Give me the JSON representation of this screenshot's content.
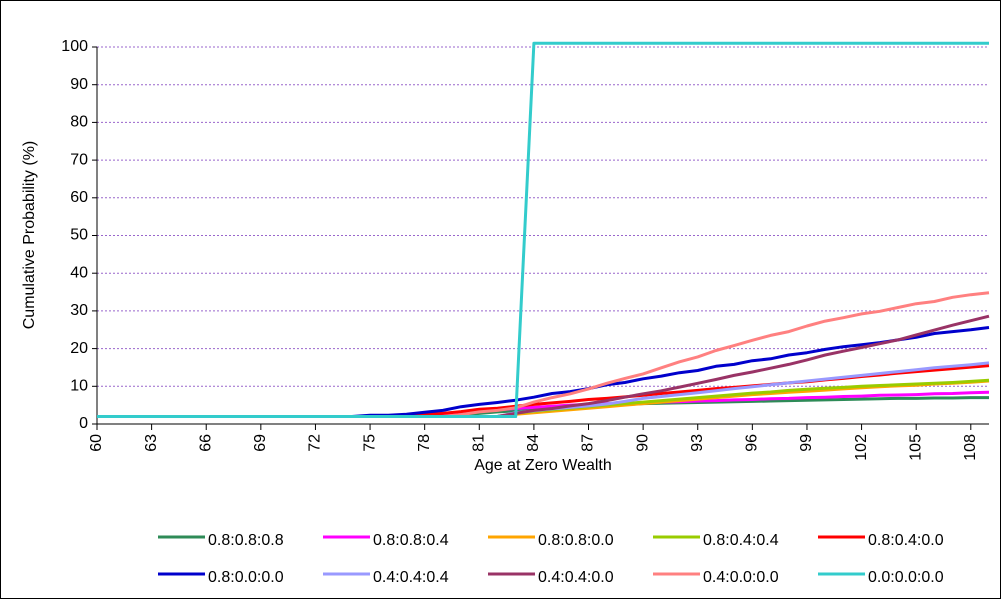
{
  "chart_data": {
    "type": "line",
    "x_label": "Age at Zero Wealth",
    "y_label": "Cumulative Probability (%)",
    "x": [
      60,
      61,
      62,
      63,
      64,
      65,
      66,
      67,
      68,
      69,
      70,
      71,
      72,
      73,
      74,
      75,
      76,
      77,
      78,
      79,
      80,
      81,
      82,
      83,
      84,
      85,
      86,
      87,
      88,
      89,
      90,
      91,
      92,
      93,
      94,
      95,
      96,
      97,
      98,
      99,
      100,
      101,
      102,
      103,
      104,
      105,
      106,
      107,
      108,
      109
    ],
    "xlim": [
      60,
      109
    ],
    "xticks": [
      60,
      63,
      66,
      69,
      72,
      75,
      78,
      81,
      84,
      87,
      90,
      93,
      96,
      99,
      102,
      105,
      108
    ],
    "ylim": [
      0,
      100
    ],
    "yticks": [
      0,
      10,
      20,
      30,
      40,
      50,
      60,
      70,
      80,
      90,
      100
    ],
    "grid": true,
    "series": [
      {
        "name": "0.8:0.8:0.8",
        "color": "#2e8b57",
        "values": [
          2,
          2,
          2,
          2,
          2,
          2,
          2,
          2,
          2,
          2,
          2,
          2,
          2,
          2,
          2,
          2,
          2,
          2,
          2,
          2,
          2.4,
          2.8,
          3.2,
          3.5,
          3.8,
          4.1,
          4.4,
          4.7,
          5.0,
          5.2,
          5.4,
          5.5,
          5.6,
          5.7,
          5.8,
          5.9,
          6.0,
          6.1,
          6.2,
          6.3,
          6.4,
          6.5,
          6.6,
          6.7,
          6.8,
          6.8,
          6.9,
          6.9,
          7.0,
          7.0
        ]
      },
      {
        "name": "0.8:0.8:0.4",
        "color": "#ff00ff",
        "values": [
          2,
          2,
          2,
          2,
          2,
          2,
          2,
          2,
          2,
          2,
          2,
          2,
          2,
          2,
          2,
          2,
          2,
          2,
          2.2,
          2.6,
          3.0,
          3.4,
          3.8,
          4.1,
          4.4,
          4.7,
          5.0,
          5.2,
          5.4,
          5.5,
          5.6,
          5.8,
          5.9,
          6.1,
          6.2,
          6.4,
          6.5,
          6.7,
          6.8,
          7.0,
          7.1,
          7.3,
          7.4,
          7.6,
          7.7,
          7.8,
          8.0,
          8.1,
          8.3,
          8.4
        ]
      },
      {
        "name": "0.8:0.8:0.0",
        "color": "#ffa500",
        "values": [
          2,
          2,
          2,
          2,
          2,
          2,
          2,
          2,
          2,
          2,
          2,
          2,
          2,
          2,
          2,
          2,
          2,
          2,
          2,
          2,
          2,
          2,
          2,
          2.6,
          3.0,
          3.4,
          3.8,
          4.2,
          4.6,
          5.0,
          5.4,
          5.8,
          6.2,
          6.6,
          7.0,
          7.4,
          7.8,
          8.1,
          8.4,
          8.7,
          9.0,
          9.3,
          9.6,
          9.9,
          10.1,
          10.3,
          10.6,
          10.8,
          11.1,
          11.4
        ]
      },
      {
        "name": "0.8:0.4:0.4",
        "color": "#99cc00",
        "values": [
          2,
          2,
          2,
          2,
          2,
          2,
          2,
          2,
          2,
          2,
          2,
          2,
          2,
          2,
          2,
          2,
          2,
          2,
          2,
          2,
          2,
          2,
          2,
          2.9,
          3.4,
          3.8,
          4.2,
          4.6,
          5.0,
          5.4,
          5.8,
          6.2,
          6.6,
          7.0,
          7.4,
          7.8,
          8.2,
          8.5,
          8.9,
          9.2,
          9.5,
          9.7,
          10.0,
          10.2,
          10.4,
          10.6,
          10.8,
          11.0,
          11.3,
          11.6
        ]
      },
      {
        "name": "0.8:0.4:0.0",
        "color": "#ff0000",
        "values": [
          2,
          2,
          2,
          2,
          2,
          2,
          2,
          2,
          2,
          2,
          2,
          2,
          2,
          2,
          2,
          2,
          2,
          2.2,
          2.6,
          2.8,
          3.3,
          3.9,
          4.2,
          4.7,
          5.2,
          5.6,
          6.0,
          6.5,
          6.8,
          7.2,
          7.6,
          8.1,
          8.5,
          8.9,
          9.4,
          9.7,
          10.1,
          10.5,
          10.9,
          11.2,
          11.7,
          12.1,
          12.6,
          13.0,
          13.5,
          13.9,
          14.3,
          14.7,
          15.1,
          15.5
        ]
      },
      {
        "name": "0.8:0.0:0.0",
        "color": "#0000cc",
        "values": [
          2,
          2,
          2,
          2,
          2,
          2,
          2,
          2,
          2,
          2,
          2,
          2,
          2,
          2,
          2,
          2.3,
          2.3,
          2.6,
          3.1,
          3.6,
          4.6,
          5.2,
          5.7,
          6.3,
          7.1,
          8.1,
          8.6,
          9.4,
          10.4,
          11.0,
          12.0,
          12.7,
          13.6,
          14.2,
          15.3,
          15.8,
          16.8,
          17.3,
          18.3,
          18.9,
          19.8,
          20.5,
          21.0,
          21.6,
          22.3,
          23.0,
          24.0,
          24.5,
          25.0,
          25.6
        ]
      },
      {
        "name": "0.4:0.4:0.4",
        "color": "#9999ff",
        "values": [
          2,
          2,
          2,
          2,
          2,
          2,
          2,
          2,
          2,
          2,
          2,
          2,
          2,
          2,
          2,
          2,
          2,
          2,
          2,
          2,
          2,
          2,
          2,
          3.0,
          3.5,
          4.0,
          4.4,
          4.8,
          5.3,
          6.0,
          6.8,
          7.3,
          7.8,
          8.3,
          8.8,
          9.4,
          9.9,
          10.4,
          10.9,
          11.4,
          11.9,
          12.4,
          12.9,
          13.4,
          13.9,
          14.4,
          14.9,
          15.3,
          15.7,
          16.2
        ]
      },
      {
        "name": "0.4:0.4:0.0",
        "color": "#993366",
        "values": [
          2,
          2,
          2,
          2,
          2,
          2,
          2,
          2,
          2,
          2,
          2,
          2,
          2,
          2,
          2,
          2,
          2,
          2,
          2,
          2,
          2,
          2,
          2,
          2.8,
          3.6,
          4.1,
          4.8,
          5.4,
          6.2,
          7.1,
          8.0,
          8.8,
          9.8,
          10.8,
          11.8,
          12.9,
          13.8,
          14.8,
          15.8,
          17.0,
          18.3,
          19.3,
          20.3,
          21.3,
          22.3,
          23.6,
          24.9,
          26.2,
          27.4,
          28.6
        ]
      },
      {
        "name": "0.4:0.0:0.0",
        "color": "#ff8080",
        "values": [
          2,
          2,
          2,
          2,
          2,
          2,
          2,
          2,
          2,
          2,
          2,
          2,
          2,
          2,
          2,
          2,
          2,
          2,
          2,
          2,
          2.5,
          3.2,
          3.6,
          4.3,
          5.8,
          7.0,
          8.0,
          9.3,
          10.8,
          12.1,
          13.3,
          14.9,
          16.5,
          17.8,
          19.5,
          20.8,
          22.2,
          23.5,
          24.5,
          26.0,
          27.3,
          28.2,
          29.2,
          29.9,
          30.9,
          31.9,
          32.5,
          33.6,
          34.3,
          34.8
        ]
      },
      {
        "name": "0.0:0.0:0.0",
        "color": "#33cccc",
        "values": [
          2,
          2,
          2,
          2,
          2,
          2,
          2,
          2,
          2,
          2,
          2,
          2,
          2,
          2,
          2,
          2,
          2,
          2,
          2,
          2,
          2,
          2,
          2,
          2,
          101,
          101,
          101,
          101,
          101,
          101,
          101,
          101,
          101,
          101,
          101,
          101,
          101,
          101,
          101,
          101,
          101,
          101,
          101,
          101,
          101,
          101,
          101,
          101,
          101,
          101
        ]
      }
    ]
  }
}
